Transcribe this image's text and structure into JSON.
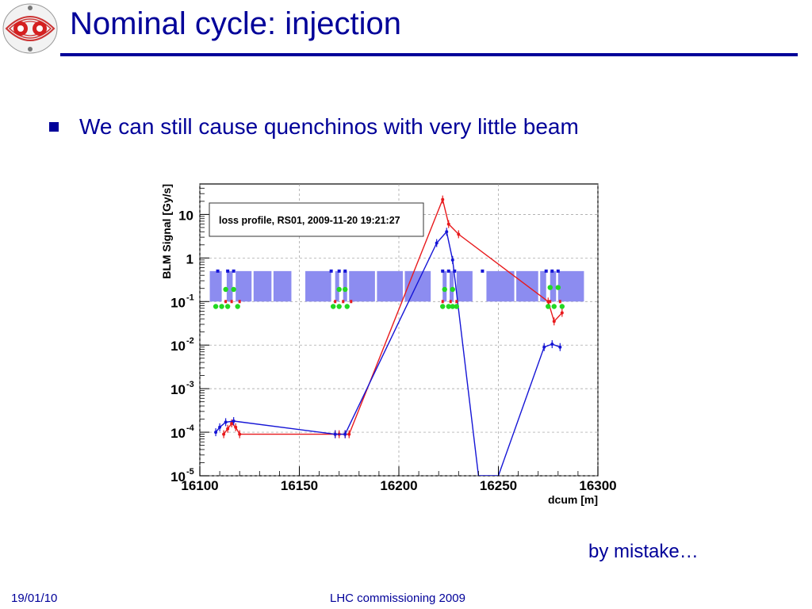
{
  "slide": {
    "title": "Nominal cycle: injection",
    "bullet": "We can still cause quenchinos with very little beam",
    "note": "by mistake…",
    "footer_date": "19/01/10",
    "footer_center": "LHC commissioning 2009"
  },
  "icons": {
    "logo": "lhc-magnet-logo-icon",
    "bullet": "square-bullet-icon"
  },
  "colors": {
    "title": "#000099",
    "series_red": "#e8191c",
    "series_blue": "#1515d6",
    "elements": "#8c8cf0",
    "monitor_green": "#22d822",
    "monitor_red": "#e8191c",
    "monitor_blue": "#1515d6"
  },
  "chart_data": {
    "type": "line",
    "title": "loss profile, RS01, 2009-11-20 19:21:27",
    "xlabel": "dcum [m]",
    "ylabel": "BLM Signal [Gy/s]",
    "xlim": [
      16100,
      16300
    ],
    "ylim": [
      1e-05,
      50
    ],
    "yscale": "log",
    "x_ticks": [
      16100,
      16150,
      16200,
      16250,
      16300
    ],
    "y_ticks": [
      {
        "value": 10,
        "base": "10",
        "exp": ""
      },
      {
        "value": 1,
        "base": "1",
        "exp": ""
      },
      {
        "value": 0.1,
        "base": "10",
        "exp": "-1"
      },
      {
        "value": 0.01,
        "base": "10",
        "exp": "-2"
      },
      {
        "value": 0.001,
        "base": "10",
        "exp": "-3"
      },
      {
        "value": 0.0001,
        "base": "10",
        "exp": "-4"
      },
      {
        "value": 1e-05,
        "base": "10",
        "exp": "-5"
      }
    ],
    "grid": true,
    "series": [
      {
        "color": "red",
        "x": [
          16112,
          16114,
          16116,
          16118,
          16120,
          16168,
          16170,
          16173,
          16175,
          16222,
          16225,
          16230,
          16275,
          16278,
          16282
        ],
        "y": [
          9e-05,
          0.00012,
          0.00016,
          0.00013,
          9e-05,
          9e-05,
          9e-05,
          9e-05,
          9e-05,
          22,
          6,
          3.5,
          0.1,
          0.035,
          0.055
        ]
      },
      {
        "color": "blue",
        "x": [
          16108,
          16110,
          16113,
          16117,
          16168,
          16173,
          16219,
          16224,
          16227,
          16240,
          16250,
          16273,
          16277,
          16281
        ],
        "y": [
          0.0001,
          0.00013,
          0.00017,
          0.00018,
          9e-05,
          9e-05,
          2.2,
          4,
          0.9,
          1e-05,
          1e-05,
          0.009,
          0.0105,
          0.009
        ]
      }
    ],
    "elements": [
      [
        16105,
        16111
      ],
      [
        16113.5,
        16116.5
      ],
      [
        16118,
        16126
      ],
      [
        16127,
        16136
      ],
      [
        16137,
        16146
      ],
      [
        16153,
        16166
      ],
      [
        16168,
        16170
      ],
      [
        16172,
        16174
      ],
      [
        16175,
        16188
      ],
      [
        16189,
        16202
      ],
      [
        16203,
        16216
      ],
      [
        16222,
        16224
      ],
      [
        16225.5,
        16227.5
      ],
      [
        16229,
        16237
      ],
      [
        16244,
        16258
      ],
      [
        16259,
        16270
      ],
      [
        16271,
        16274
      ],
      [
        16276,
        16279
      ],
      [
        16280,
        16293
      ]
    ],
    "monitors_green": [
      {
        "x": 16108,
        "y": 0.077
      },
      {
        "x": 16111,
        "y": 0.077
      },
      {
        "x": 16113,
        "y": 0.19
      },
      {
        "x": 16114,
        "y": 0.077
      },
      {
        "x": 16117,
        "y": 0.19
      },
      {
        "x": 16119,
        "y": 0.077
      },
      {
        "x": 16167,
        "y": 0.077
      },
      {
        "x": 16170,
        "y": 0.19
      },
      {
        "x": 16170,
        "y": 0.077
      },
      {
        "x": 16173,
        "y": 0.19
      },
      {
        "x": 16174,
        "y": 0.077
      },
      {
        "x": 16222,
        "y": 0.077
      },
      {
        "x": 16223,
        "y": 0.19
      },
      {
        "x": 16225,
        "y": 0.077
      },
      {
        "x": 16227,
        "y": 0.19
      },
      {
        "x": 16227,
        "y": 0.077
      },
      {
        "x": 16229,
        "y": 0.077
      },
      {
        "x": 16275,
        "y": 0.077
      },
      {
        "x": 16276,
        "y": 0.21
      },
      {
        "x": 16278,
        "y": 0.077
      },
      {
        "x": 16280,
        "y": 0.21
      },
      {
        "x": 16282,
        "y": 0.077
      }
    ],
    "monitors_red": [
      {
        "x": 16113,
        "y": 0.1
      },
      {
        "x": 16116,
        "y": 0.1
      },
      {
        "x": 16120,
        "y": 0.1
      },
      {
        "x": 16168,
        "y": 0.1
      },
      {
        "x": 16172,
        "y": 0.1
      },
      {
        "x": 16176,
        "y": 0.1
      },
      {
        "x": 16222,
        "y": 0.1
      },
      {
        "x": 16226,
        "y": 0.1
      },
      {
        "x": 16229,
        "y": 0.1
      },
      {
        "x": 16276,
        "y": 0.1
      },
      {
        "x": 16281,
        "y": 0.1
      }
    ],
    "monitors_blue": [
      {
        "x": 16109,
        "y": 0.5
      },
      {
        "x": 16114,
        "y": 0.5
      },
      {
        "x": 16117,
        "y": 0.5
      },
      {
        "x": 16166,
        "y": 0.5
      },
      {
        "x": 16170,
        "y": 0.5
      },
      {
        "x": 16173,
        "y": 0.5
      },
      {
        "x": 16222,
        "y": 0.5
      },
      {
        "x": 16225,
        "y": 0.5
      },
      {
        "x": 16228,
        "y": 0.5
      },
      {
        "x": 16242,
        "y": 0.5
      },
      {
        "x": 16274,
        "y": 0.5
      },
      {
        "x": 16277,
        "y": 0.5
      },
      {
        "x": 16280,
        "y": 0.5
      }
    ]
  }
}
